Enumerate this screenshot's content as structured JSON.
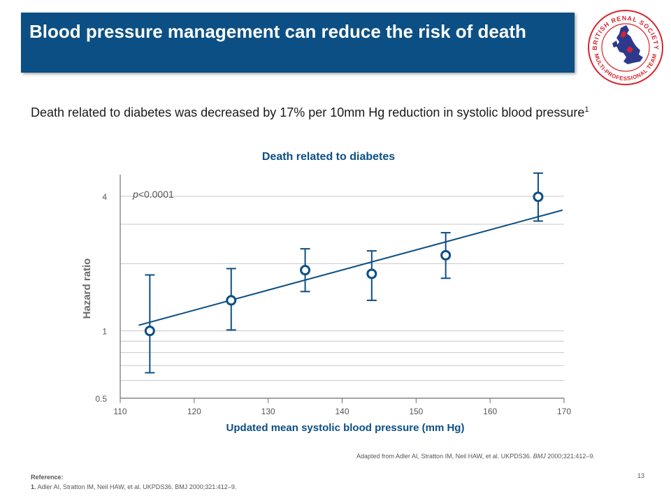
{
  "slide": {
    "title": "Blood pressure management can reduce the risk of death",
    "intro_text": "Death related to diabetes was decreased by 17% per 10mm Hg reduction in systolic blood pressure",
    "intro_sup": "1",
    "adapted_note": "Adapted from Adler AI, Stratton IM, Neil  HAW, et al. UKPDS36. ",
    "adapted_journal": "BMJ",
    "adapted_tail": " 2000;321:412–9.",
    "reference_heading": "Reference:",
    "reference_number": "1.",
    "reference_text": " Adler AI, Stratton IM, Neil  HAW, et al. UKPDS36. BMJ 2000;321:412–9.",
    "page_number": "13"
  },
  "logo": {
    "top_text": "BRITISH RENAL SOCIETY",
    "bottom_text": "MULTI-PROFESSIONAL TEAM",
    "colors": {
      "ring": "#d9232e",
      "map": "#2d3a8c",
      "map_accent": "#d9232e"
    }
  },
  "chart_data": {
    "type": "scatter",
    "title": "Death related to diabetes",
    "xlabel": "Updated mean systolic blood pressure (mm Hg)",
    "ylabel": "Hazard ratio",
    "x_scale": "linear",
    "y_scale": "log",
    "xlim": [
      110,
      170
    ],
    "ylim": [
      0.5,
      5
    ],
    "x_ticks": [
      110,
      120,
      130,
      140,
      150,
      160,
      170
    ],
    "y_tick_labels": [
      {
        "value": 0.5,
        "label": "0.5"
      },
      {
        "value": 1,
        "label": "1"
      },
      {
        "value": 4,
        "label": "4"
      }
    ],
    "gridlines_y": [
      0.6,
      0.7,
      0.8,
      0.9,
      1,
      2,
      3,
      4
    ],
    "annotation": {
      "italic": "p",
      "text": "<0.0001"
    },
    "series": [
      {
        "points": [
          {
            "x": 114,
            "y": 1.0,
            "lo": 0.65,
            "hi": 1.78
          },
          {
            "x": 125,
            "y": 1.37,
            "lo": 1.01,
            "hi": 1.9
          },
          {
            "x": 135,
            "y": 1.87,
            "lo": 1.5,
            "hi": 2.33
          },
          {
            "x": 144,
            "y": 1.8,
            "lo": 1.37,
            "hi": 2.28
          },
          {
            "x": 154,
            "y": 2.18,
            "lo": 1.72,
            "hi": 2.75
          },
          {
            "x": 166.5,
            "y": 3.98,
            "lo": 3.1,
            "hi": 5.08
          }
        ]
      }
    ],
    "trend_line": {
      "x": [
        112.5,
        169.8
      ],
      "y": [
        1.06,
        3.47
      ]
    },
    "colors": {
      "series": "#0c4f84",
      "grid": "#c8c8c8",
      "axis": "#6e6e6e",
      "tick_text": "#555555",
      "label": "#6b6b6b"
    }
  }
}
